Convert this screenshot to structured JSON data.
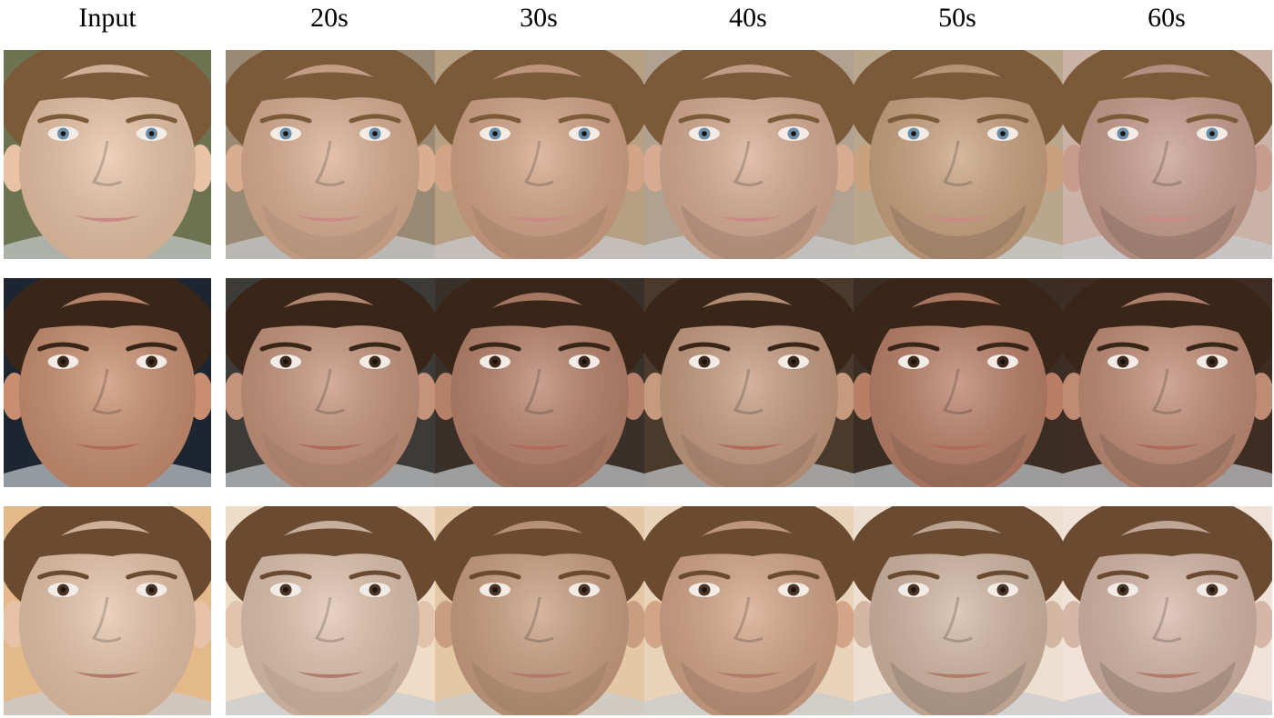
{
  "columns": [
    "Input",
    "20s",
    "30s",
    "40s",
    "50s",
    "60s"
  ],
  "rows": [
    {
      "subject": "boy-1",
      "hair": "#7a5a38",
      "skin": [
        "#e8c3a6",
        "#d9ad90",
        "#d2a385",
        "#d6ab91",
        "#c9a17f",
        "#c79c8c"
      ],
      "background": [
        "#6d7350",
        "#9a8a73",
        "#b79f84",
        "#b0a191",
        "#b9a78d",
        "#cab3a6"
      ],
      "eyes": "#6b8fa8",
      "lips": "#c98c84"
    },
    {
      "subject": "boy-2",
      "hair": "#3a2618",
      "skin": [
        "#c98e6f",
        "#c4937a",
        "#b78069",
        "#c59a7f",
        "#b97e66",
        "#c08b74"
      ],
      "background": [
        "#1c2530",
        "#3d3b38",
        "#3a302a",
        "#4a3a2c",
        "#3a2d24",
        "#3f2d24"
      ],
      "eyes": "#3d2a1c",
      "lips": "#b06a5c"
    },
    {
      "subject": "boy-3",
      "hair": "#6a4a30",
      "skin": [
        "#e6c3a8",
        "#e0c2ad",
        "#c99e80",
        "#d3a486",
        "#d2b6a2",
        "#d6b6a6"
      ],
      "background": [
        "#e3b98a",
        "#efdcc6",
        "#e4c8a6",
        "#e8d2b8",
        "#eee0d0",
        "#f0e2d6"
      ],
      "eyes": "#4a3426",
      "lips": "#b07a6c"
    }
  ]
}
